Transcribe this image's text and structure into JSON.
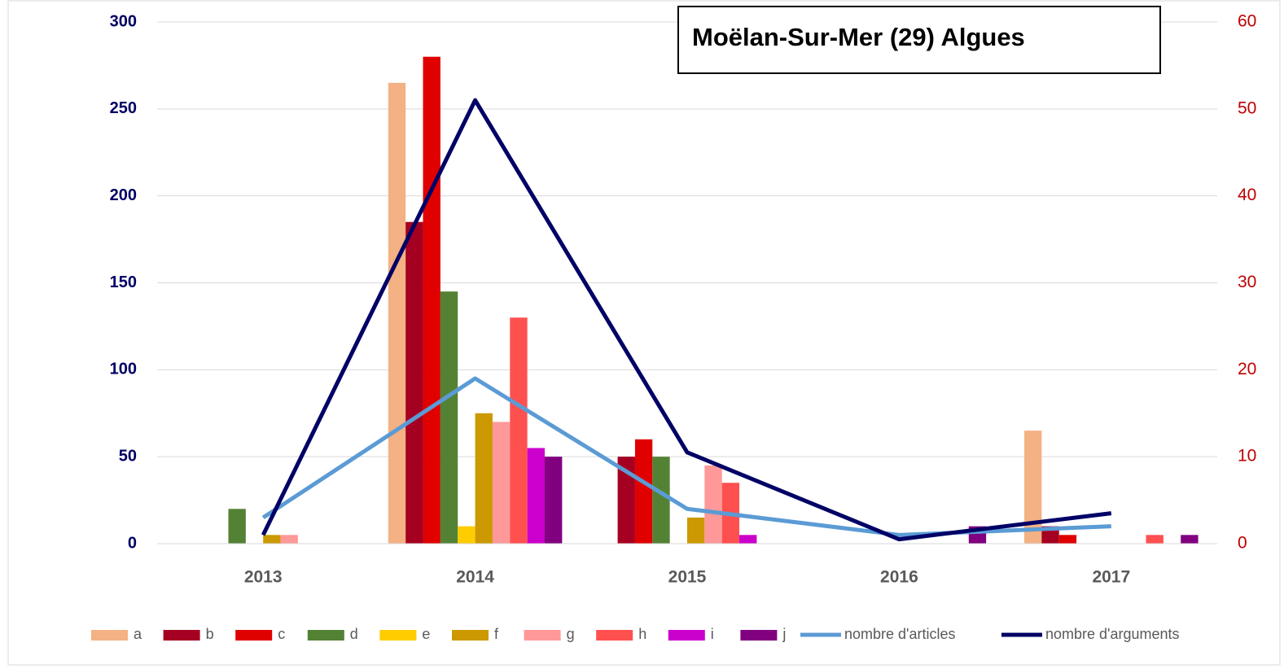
{
  "chart_data": {
    "type": "bar",
    "title": "Moëlan-Sur-Mer (29) Algues",
    "categories": [
      "2013",
      "2014",
      "2015",
      "2016",
      "2017"
    ],
    "series": [
      {
        "name": "a",
        "color": "#f4b183",
        "values": [
          0,
          265,
          0,
          0,
          65
        ]
      },
      {
        "name": "b",
        "color": "#a50021",
        "values": [
          0,
          185,
          50,
          0,
          10
        ]
      },
      {
        "name": "c",
        "color": "#e00000",
        "values": [
          0,
          280,
          60,
          0,
          5
        ]
      },
      {
        "name": "d",
        "color": "#548235",
        "values": [
          20,
          145,
          50,
          0,
          0
        ]
      },
      {
        "name": "e",
        "color": "#ffcc00",
        "values": [
          0,
          10,
          0,
          0,
          0
        ]
      },
      {
        "name": "f",
        "color": "#cc9900",
        "values": [
          5,
          75,
          15,
          0,
          0
        ]
      },
      {
        "name": "g",
        "color": "#ff9999",
        "values": [
          5,
          70,
          45,
          0,
          0
        ]
      },
      {
        "name": "h",
        "color": "#ff5050",
        "values": [
          0,
          130,
          35,
          0,
          5
        ]
      },
      {
        "name": "i",
        "color": "#cc00cc",
        "values": [
          0,
          55,
          5,
          0,
          0
        ]
      },
      {
        "name": "j",
        "color": "#800080",
        "values": [
          0,
          50,
          0,
          10,
          5
        ]
      },
      {
        "name": "nombre d'articles",
        "color": "#5b9bd5",
        "type": "line",
        "axis": "y2",
        "values": [
          3,
          19,
          4,
          1,
          2
        ]
      },
      {
        "name": "nombre d'arguments",
        "color": "#000066",
        "type": "line",
        "axis": "y2",
        "values": [
          1,
          51,
          10.5,
          0.5,
          3.5
        ]
      }
    ],
    "ylim": [
      0,
      300
    ],
    "yticks": [
      0,
      50,
      100,
      150,
      200,
      250,
      300
    ],
    "y2lim": [
      0,
      60
    ],
    "y2ticks": [
      0,
      10,
      20,
      30,
      40,
      50,
      60
    ],
    "grid": true,
    "legend": "bottom"
  }
}
